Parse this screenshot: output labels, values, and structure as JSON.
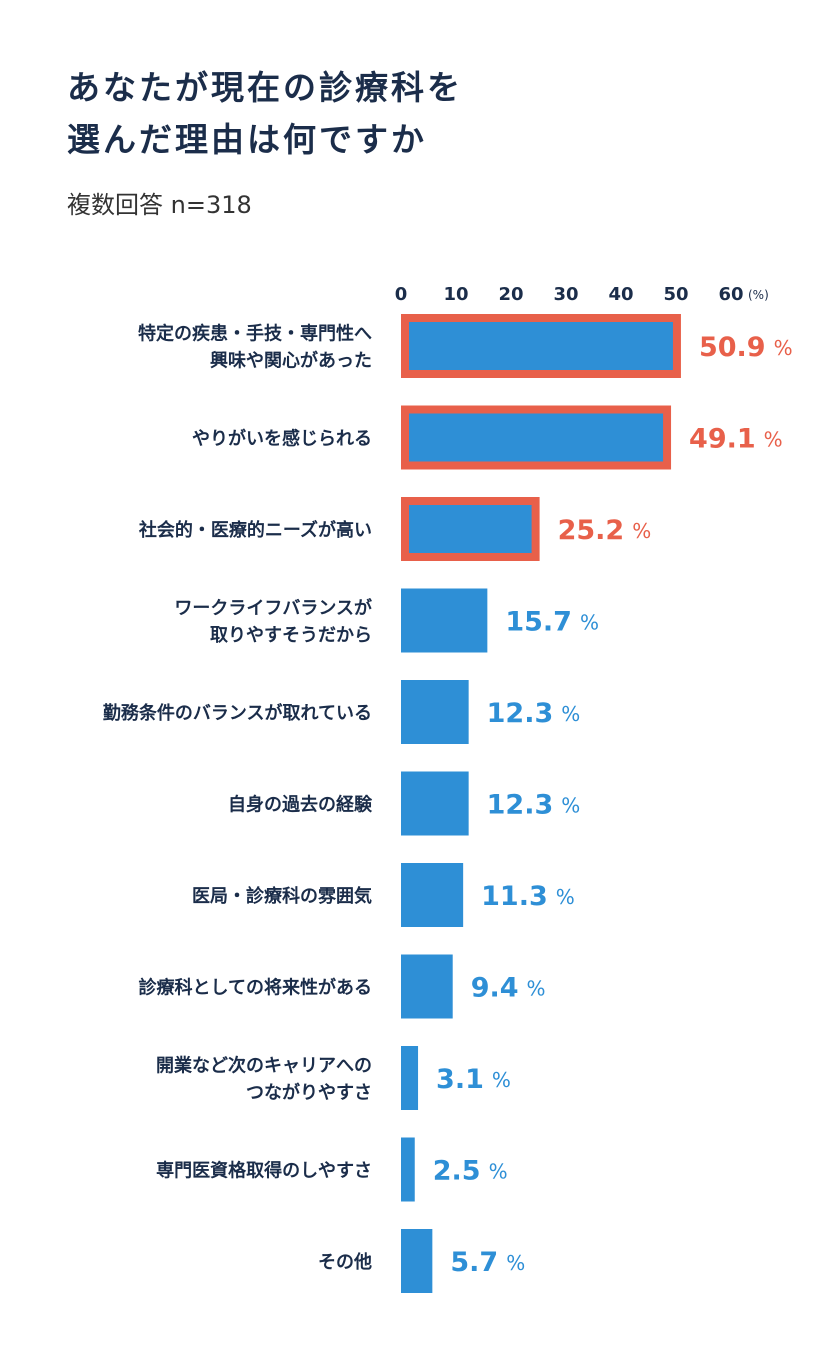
{
  "page": {
    "title_lines": [
      "あなたが現在の診療科を",
      "選んだ理由は何ですか"
    ],
    "subtitle": "複数回答 n=318"
  },
  "colors": {
    "bar": "#2e8fd6",
    "highlight": "#e8604a",
    "title": "#1b2d4a",
    "label": "#1b2d4a",
    "axis_text": "#1b2d4a"
  },
  "chart_data": {
    "type": "bar",
    "orientation": "horizontal",
    "title": "あなたが現在の診療科を選んだ理由は何ですか",
    "subtitle": "複数回答 n=318",
    "unit": "%",
    "unit_label": "(%)",
    "xlim": [
      0,
      60
    ],
    "ticks": [
      0,
      10,
      20,
      30,
      40,
      50,
      60
    ],
    "grid": false,
    "legend": "none",
    "categories": [
      [
        "特定の疾患・手技・専門性へ",
        "興味や関心があった"
      ],
      [
        "やりがいを感じられる"
      ],
      [
        "社会的・医療的ニーズが高い"
      ],
      [
        "ワークライフバランスが",
        "取りやすそうだから"
      ],
      [
        "勤務条件のバランスが取れている"
      ],
      [
        "自身の過去の経験"
      ],
      [
        "医局・診療科の雰囲気"
      ],
      [
        "診療科としての将来性がある"
      ],
      [
        "開業など次のキャリアへの",
        "つながりやすさ"
      ],
      [
        "専門医資格取得のしやすさ"
      ],
      [
        "その他"
      ]
    ],
    "values": [
      50.9,
      49.1,
      25.2,
      15.7,
      12.3,
      12.3,
      11.3,
      9.4,
      3.1,
      2.5,
      5.7
    ],
    "value_labels": [
      "50.9",
      "49.1",
      "25.2",
      "15.7",
      "12.3",
      "12.3",
      "11.3",
      "9.4",
      "3.1",
      "2.5",
      "5.7"
    ],
    "highlighted": [
      true,
      true,
      true,
      false,
      false,
      false,
      false,
      false,
      false,
      false,
      false
    ]
  }
}
